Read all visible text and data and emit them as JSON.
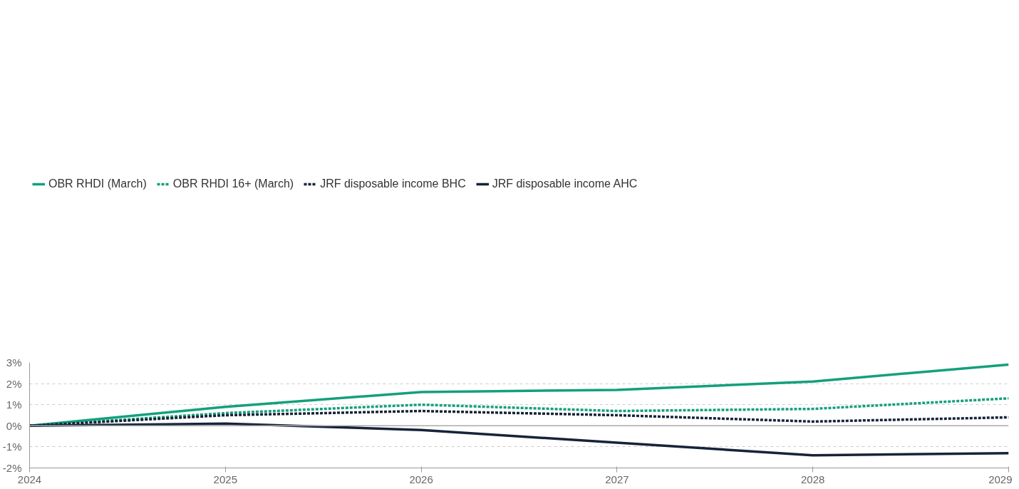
{
  "chart_data": {
    "type": "line",
    "x": [
      2024,
      2025,
      2026,
      2027,
      2028,
      2029
    ],
    "series": [
      {
        "name": "OBR RHDI (March)",
        "color": "#14a07c",
        "line_style": "solid",
        "values": [
          0,
          0.9,
          1.6,
          1.7,
          2.1,
          2.9
        ]
      },
      {
        "name": "OBR RHDI 16+ (March)",
        "color": "#14a07c",
        "line_style": "dotted",
        "values": [
          0,
          0.6,
          1.0,
          0.7,
          0.8,
          1.3
        ]
      },
      {
        "name": "JRF disposable income BHC",
        "color": "#17233a",
        "line_style": "dotted",
        "values": [
          0,
          0.5,
          0.7,
          0.5,
          0.2,
          0.4
        ]
      },
      {
        "name": "JRF disposable income AHC",
        "color": "#17233a",
        "line_style": "solid",
        "values": [
          0,
          0.1,
          -0.2,
          -0.8,
          -1.4,
          -1.3
        ]
      }
    ],
    "xlim": [
      2024,
      2029
    ],
    "xticks": [
      2024,
      2025,
      2026,
      2027,
      2028,
      2029
    ],
    "ylim": [
      -2,
      3
    ],
    "yticks": [
      {
        "value": -2,
        "label": "-2%"
      },
      {
        "value": -1,
        "label": "-1%"
      },
      {
        "value": 0,
        "label": "0%"
      },
      {
        "value": 1,
        "label": "1%"
      },
      {
        "value": 2,
        "label": "2%"
      },
      {
        "value": 3,
        "label": "3%"
      }
    ],
    "ref_lines": [
      {
        "axis": "y",
        "value": 0,
        "color": "#aaaaaa"
      }
    ],
    "grid": "y",
    "legend": "top left",
    "marker": "none"
  }
}
